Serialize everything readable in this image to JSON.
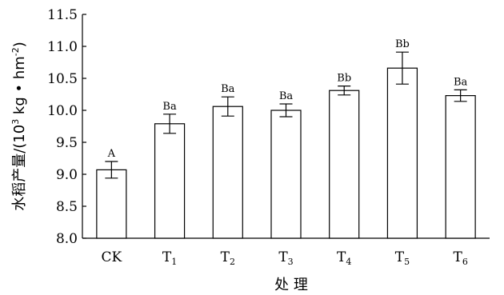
{
  "chart_data": {
    "type": "bar",
    "categories": [
      {
        "base": "CK",
        "sub": ""
      },
      {
        "base": "T",
        "sub": "1"
      },
      {
        "base": "T",
        "sub": "2"
      },
      {
        "base": "T",
        "sub": "3"
      },
      {
        "base": "T",
        "sub": "4"
      },
      {
        "base": "T",
        "sub": "5"
      },
      {
        "base": "T",
        "sub": "6"
      }
    ],
    "values": [
      9.07,
      9.79,
      10.06,
      10.0,
      10.31,
      10.66,
      10.23
    ],
    "errors": [
      0.13,
      0.15,
      0.15,
      0.1,
      0.07,
      0.25,
      0.09
    ],
    "labels": [
      "A",
      "Ba",
      "Ba",
      "Ba",
      "Bb",
      "Bb",
      "Ba"
    ],
    "xlabel": "处 理",
    "ylabel": {
      "prefix": "水稻产量/(10",
      "exp1": "3",
      "mid": " kg • hm",
      "exp2": "-2",
      "suffix": ")"
    },
    "ylim": [
      8.0,
      11.5
    ],
    "yticks": [
      "8.0",
      "8.5",
      "9.0",
      "9.5",
      "10.0",
      "10.5",
      "11.0",
      "11.5"
    ],
    "grid": false,
    "bar_fill": "#ffffff",
    "bar_stroke": "#000000"
  }
}
